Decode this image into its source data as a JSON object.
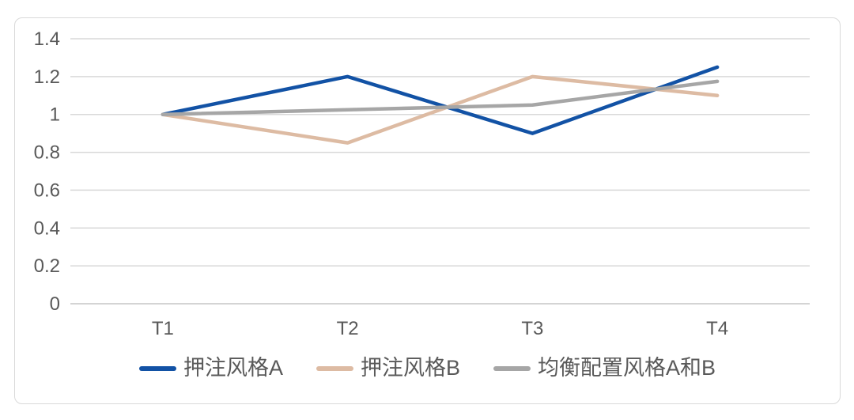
{
  "colors": {
    "background": "#FFFFFF",
    "chart_border": "#D9D9D9",
    "gridline": "#D9D9D9",
    "axis_line": "#C6C6C6",
    "tick_text": "#595959",
    "legend_text": "#595959"
  },
  "chart_data": {
    "type": "line",
    "title": "",
    "xlabel": "",
    "ylabel": "",
    "categories": [
      "T1",
      "T2",
      "T3",
      "T4"
    ],
    "series": [
      {
        "name": "押注风格A",
        "color": "#1252A5",
        "values": [
          1,
          1.2,
          0.9,
          1.25
        ]
      },
      {
        "name": "押注风格B",
        "color": "#DDBBA3",
        "values": [
          1,
          0.85,
          1.2,
          1.1
        ]
      },
      {
        "name": "均衡配置风格A和B",
        "color": "#A6A6A6",
        "values": [
          1,
          1.025,
          1.05,
          1.175
        ]
      }
    ],
    "ylim": [
      0,
      1.4
    ],
    "ytick_interval": 0.2,
    "ytick_labels": [
      "0",
      "0.2",
      "0.4",
      "0.6",
      "0.8",
      "1",
      "1.2",
      "1.4"
    ],
    "grid": true,
    "legend_position": "bottom"
  }
}
